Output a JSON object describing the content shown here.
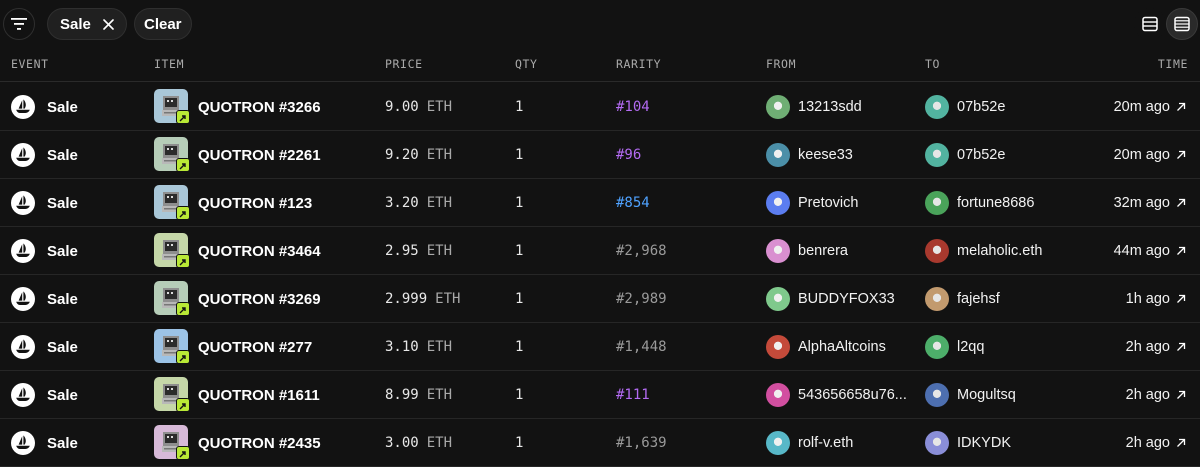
{
  "toolbar": {
    "filter_chip_label": "Sale",
    "clear_label": "Clear"
  },
  "columns": {
    "event": "EVENT",
    "item": "ITEM",
    "price": "PRICE",
    "qty": "QTY",
    "rarity": "RARITY",
    "from": "FROM",
    "to": "TO",
    "time": "TIME"
  },
  "colors": {
    "background": "#121212",
    "rarity_purple": "#b36bf2",
    "rarity_blue": "#4fa2ff",
    "rarity_gray": "#9a9a9a",
    "badge_green": "#b9e936"
  },
  "rows": [
    {
      "event": "Sale",
      "item": "QUOTRON #3266",
      "price": "9.00",
      "unit": "ETH",
      "qty": "1",
      "rarity": "#104",
      "rarity_color": "#b36bf2",
      "from": "13213sdd",
      "to": "07b52e",
      "time": "20m ago",
      "thumb_bg": "#a9c7d8",
      "from_avatar": "#6fae74",
      "to_avatar": "#52b3a0"
    },
    {
      "event": "Sale",
      "item": "QUOTRON #2261",
      "price": "9.20",
      "unit": "ETH",
      "qty": "1",
      "rarity": "#96",
      "rarity_color": "#b36bf2",
      "from": "keese33",
      "to": "07b52e",
      "time": "20m ago",
      "thumb_bg": "#b6cdb8",
      "from_avatar": "#4b8fa8",
      "to_avatar": "#52b3a0"
    },
    {
      "event": "Sale",
      "item": "QUOTRON #123",
      "price": "3.20",
      "unit": "ETH",
      "qty": "1",
      "rarity": "#854",
      "rarity_color": "#4fa2ff",
      "from": "Pretovich",
      "to": "fortune8686",
      "time": "32m ago",
      "thumb_bg": "#a9c7d8",
      "from_avatar": "#5b7df0",
      "to_avatar": "#4aa35a"
    },
    {
      "event": "Sale",
      "item": "QUOTRON #3464",
      "price": "2.95",
      "unit": "ETH",
      "qty": "1",
      "rarity": "#2,968",
      "rarity_color": "#9a9a9a",
      "from": "benrera",
      "to": "melaholic.eth",
      "time": "44m ago",
      "thumb_bg": "#c5d7a8",
      "from_avatar": "#d98fd0",
      "to_avatar": "#a8392e"
    },
    {
      "event": "Sale",
      "item": "QUOTRON #3269",
      "price": "2.999",
      "unit": "ETH",
      "qty": "1",
      "rarity": "#2,989",
      "rarity_color": "#9a9a9a",
      "from": "BUDDYFOX33",
      "to": "fajehsf",
      "time": "1h ago",
      "thumb_bg": "#b6cdb8",
      "from_avatar": "#7fc98c",
      "to_avatar": "#c29a6e"
    },
    {
      "event": "Sale",
      "item": "QUOTRON #277",
      "price": "3.10",
      "unit": "ETH",
      "qty": "1",
      "rarity": "#1,448",
      "rarity_color": "#9a9a9a",
      "from": "AlphaAltcoins",
      "to": "l2qq",
      "time": "2h ago",
      "thumb_bg": "#9cc3e6",
      "from_avatar": "#c44a3a",
      "to_avatar": "#4dae6a"
    },
    {
      "event": "Sale",
      "item": "QUOTRON #1611",
      "price": "8.99",
      "unit": "ETH",
      "qty": "1",
      "rarity": "#111",
      "rarity_color": "#b36bf2",
      "from": "543656658u76...",
      "to": "Mogultsq",
      "time": "2h ago",
      "thumb_bg": "#c5d7a8",
      "from_avatar": "#d24fa0",
      "to_avatar": "#4d6fb0"
    },
    {
      "event": "Sale",
      "item": "QUOTRON #2435",
      "price": "3.00",
      "unit": "ETH",
      "qty": "1",
      "rarity": "#1,639",
      "rarity_color": "#9a9a9a",
      "from": "rolf-v.eth",
      "to": "IDKYDK",
      "time": "2h ago",
      "thumb_bg": "#d7b9d8",
      "from_avatar": "#58b8c8",
      "to_avatar": "#8a8ed8"
    }
  ]
}
